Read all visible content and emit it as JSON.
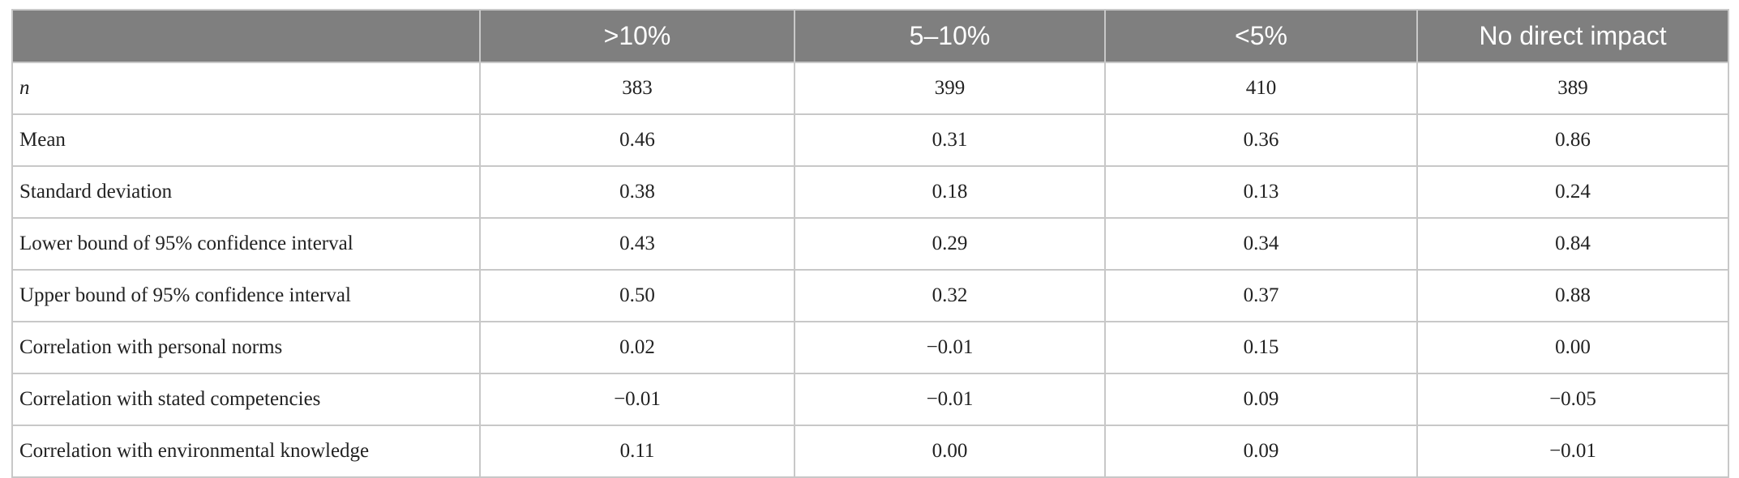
{
  "table": {
    "columns": [
      ">10%",
      "5–10%",
      "<5%",
      "No direct impact"
    ],
    "rows": [
      [
        "n",
        "383",
        "399",
        "410",
        "389"
      ],
      [
        "Mean",
        "0.46",
        "0.31",
        "0.36",
        "0.86"
      ],
      [
        "Standard deviation",
        "0.38",
        "0.18",
        "0.13",
        "0.24"
      ],
      [
        "Lower bound of 95% confidence interval",
        "0.43",
        "0.29",
        "0.34",
        "0.84"
      ],
      [
        "Upper bound of 95% confidence interval",
        "0.50",
        "0.32",
        "0.37",
        "0.88"
      ],
      [
        "Correlation with personal norms",
        "0.02",
        "−0.01",
        "0.15",
        "0.00"
      ],
      [
        "Correlation with stated competencies",
        "−0.01",
        "−0.01",
        "0.09",
        "−0.05"
      ],
      [
        "Correlation with environmental knowledge",
        "0.11",
        "0.00",
        "0.09",
        "−0.01"
      ]
    ]
  }
}
